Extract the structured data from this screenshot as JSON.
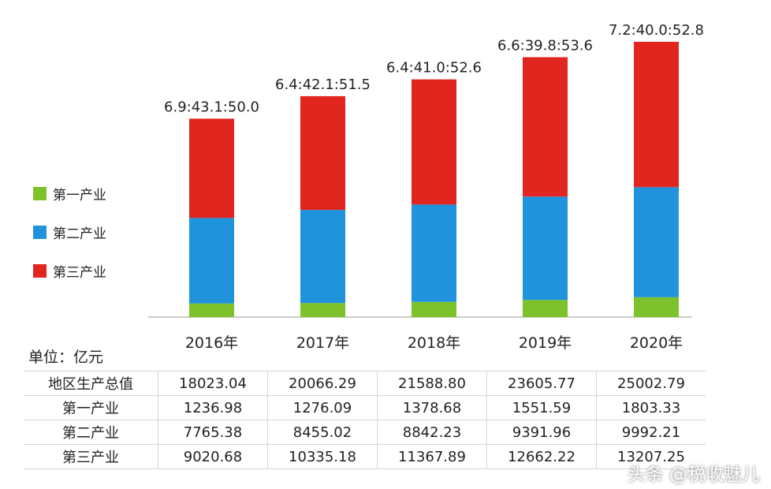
{
  "chart_data": {
    "type": "bar",
    "stacked": true,
    "categories": [
      "2016年",
      "2017年",
      "2018年",
      "2019年",
      "2020年"
    ],
    "series": [
      {
        "name": "第一产业",
        "values": [
          1236.98,
          1276.09,
          1378.68,
          1551.59,
          1803.33
        ],
        "color": "#7dc22b"
      },
      {
        "name": "第二产业",
        "values": [
          7765.38,
          8455.02,
          8842.23,
          9391.96,
          9992.21
        ],
        "color": "#1f93dc"
      },
      {
        "name": "第三产业",
        "values": [
          9020.68,
          10335.18,
          11367.89,
          12662.22,
          13207.25
        ],
        "color": "#e12620"
      }
    ],
    "totals": [
      18023.04,
      20066.29,
      21588.8,
      23605.77,
      25002.79
    ],
    "ratio_labels": [
      "6.9:43.1:50.0",
      "6.4:42.1:51.5",
      "6.4:41.0:52.6",
      "6.6:39.8:53.6",
      "7.2:40.0:52.8"
    ],
    "ylim": [
      0,
      25002.79
    ],
    "grid": false,
    "legend_position": "left"
  },
  "legend": [
    {
      "label": "第一产业",
      "color": "#7dc22b"
    },
    {
      "label": "第二产业",
      "color": "#1f93dc"
    },
    {
      "label": "第三产业",
      "color": "#e12620"
    }
  ],
  "unit_label": "单位：亿元",
  "table": {
    "rows": [
      {
        "name": "地区生产总值",
        "values": [
          "18023.04",
          "20066.29",
          "21588.80",
          "23605.77",
          "25002.79"
        ]
      },
      {
        "name": "第一产业",
        "values": [
          "1236.98",
          "1276.09",
          "1378.68",
          "1551.59",
          "1803.33"
        ]
      },
      {
        "name": "第二产业",
        "values": [
          "7765.38",
          "8455.02",
          "8842.23",
          "9391.96",
          "9992.21"
        ]
      },
      {
        "name": "第三产业",
        "values": [
          "9020.68",
          "10335.18",
          "11367.89",
          "12662.22",
          "13207.25"
        ]
      }
    ]
  },
  "watermark_text": "头条 @税收魅儿"
}
